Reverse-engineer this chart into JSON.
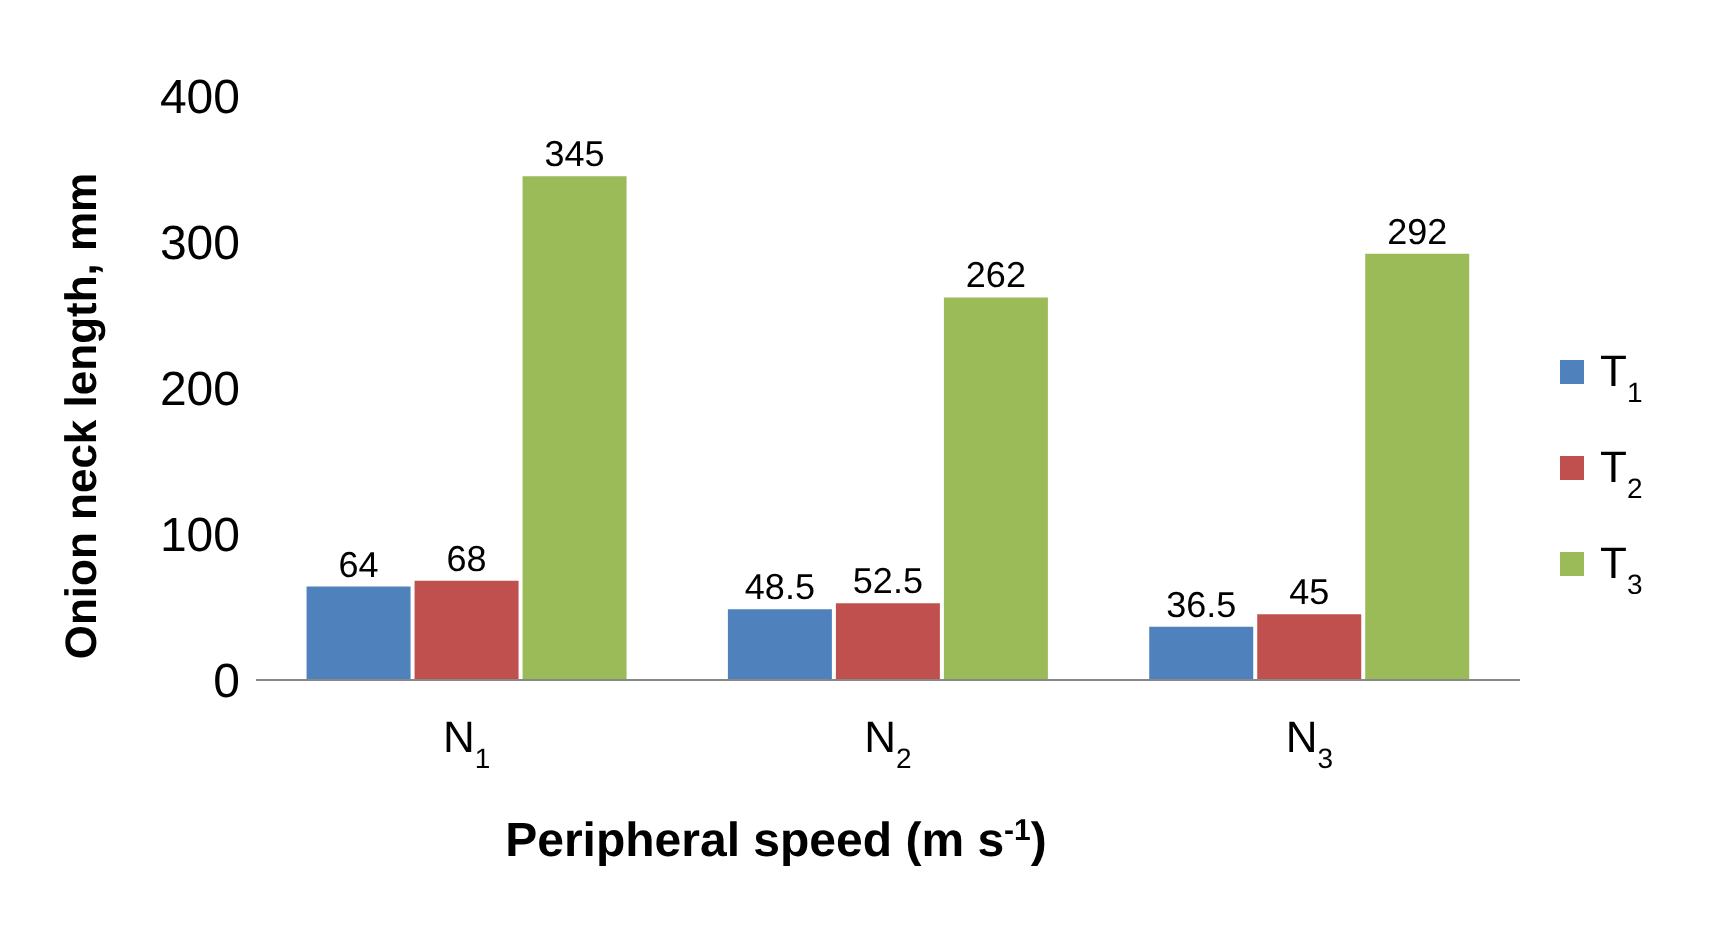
{
  "chart_data": {
    "type": "bar",
    "xlabel": "Peripheral speed (m s$^{-1}$)",
    "ylabel": "Onion neck length, mm",
    "categories": [
      "N$_{1}$",
      "N$_{2}$",
      "N$_{3}$"
    ],
    "series": [
      {
        "name": "T$_{1}$",
        "color": "#4f81bd",
        "values": [
          64,
          48.5,
          36.5
        ]
      },
      {
        "name": "T$_{2}$",
        "color": "#c0504d",
        "values": [
          68,
          52.5,
          45
        ]
      },
      {
        "name": "T$_{3}$",
        "color": "#9bbb59",
        "values": [
          345,
          262,
          292
        ]
      }
    ],
    "ylim": [
      0,
      400
    ],
    "yticks": [
      0,
      100,
      200,
      300,
      400
    ],
    "legend": "right",
    "data_labels": true
  }
}
